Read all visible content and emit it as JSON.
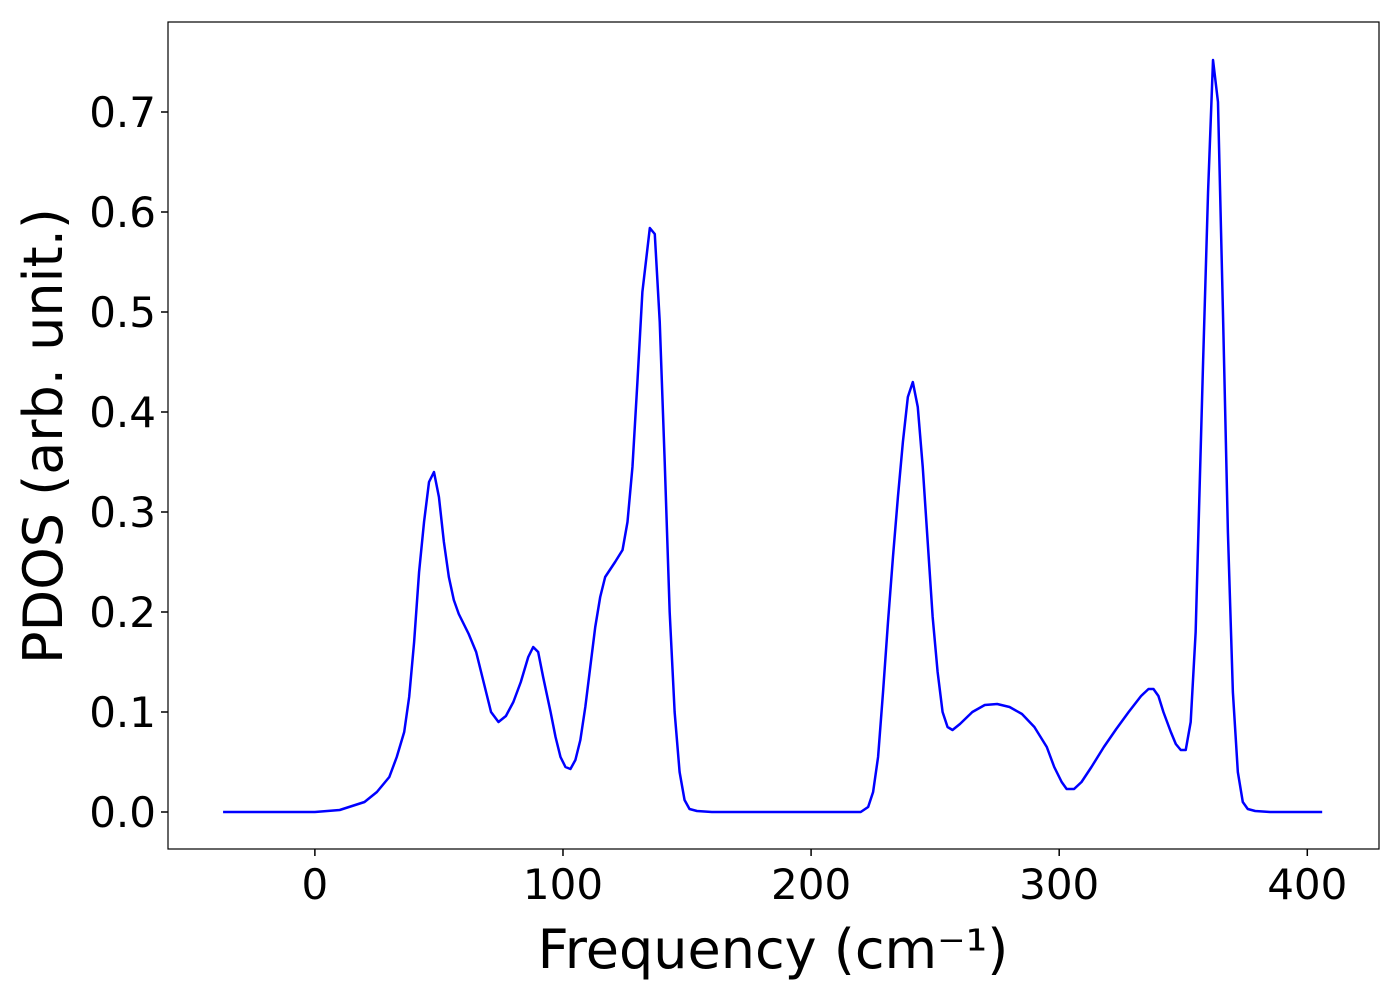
{
  "chart_data": {
    "type": "line",
    "xlabel": "Frequency (cm⁻¹)",
    "ylabel": "PDOS (arb. unit.)",
    "x": [
      -37,
      0,
      10,
      20,
      25,
      30,
      33,
      36,
      38,
      40,
      42,
      44,
      46,
      48,
      50,
      52,
      54,
      56,
      58,
      62,
      65,
      68,
      71,
      74,
      77,
      80,
      83,
      86,
      88,
      90,
      92,
      95,
      97,
      99,
      101,
      103,
      105,
      107,
      109,
      111,
      113,
      115,
      117,
      121,
      124,
      126,
      128,
      130,
      132,
      135,
      137,
      139,
      141,
      143,
      145,
      147,
      149,
      151,
      154,
      160,
      220,
      223,
      225,
      227,
      229,
      231,
      233,
      235,
      237,
      239,
      241,
      243,
      245,
      247,
      249,
      251,
      253,
      255,
      257,
      260,
      265,
      270,
      275,
      280,
      285,
      290,
      295,
      298,
      301,
      303,
      306,
      309,
      313,
      318,
      323,
      328,
      333,
      336,
      338,
      340,
      342,
      345,
      347,
      349,
      351,
      353,
      355,
      358,
      360,
      362,
      364,
      366,
      368,
      370,
      372,
      374,
      376,
      379,
      385,
      406
    ],
    "series": [
      {
        "name": "PDOS",
        "color": "#0000ff",
        "values": [
          0,
          0,
          0.002,
          0.01,
          0.02,
          0.035,
          0.055,
          0.08,
          0.115,
          0.17,
          0.24,
          0.29,
          0.33,
          0.34,
          0.315,
          0.27,
          0.235,
          0.212,
          0.198,
          0.178,
          0.16,
          0.13,
          0.1,
          0.09,
          0.096,
          0.11,
          0.13,
          0.155,
          0.165,
          0.16,
          0.135,
          0.1,
          0.075,
          0.055,
          0.045,
          0.043,
          0.052,
          0.072,
          0.105,
          0.145,
          0.185,
          0.215,
          0.235,
          0.25,
          0.262,
          0.29,
          0.345,
          0.43,
          0.52,
          0.584,
          0.578,
          0.49,
          0.35,
          0.2,
          0.1,
          0.04,
          0.012,
          0.003,
          0.001,
          0,
          0,
          0.005,
          0.02,
          0.055,
          0.12,
          0.19,
          0.255,
          0.315,
          0.37,
          0.415,
          0.43,
          0.405,
          0.345,
          0.27,
          0.195,
          0.14,
          0.1,
          0.085,
          0.082,
          0.088,
          0.1,
          0.107,
          0.108,
          0.105,
          0.098,
          0.085,
          0.065,
          0.045,
          0.03,
          0.023,
          0.023,
          0.03,
          0.045,
          0.065,
          0.083,
          0.1,
          0.116,
          0.123,
          0.123,
          0.116,
          0.1,
          0.08,
          0.068,
          0.062,
          0.062,
          0.09,
          0.18,
          0.45,
          0.62,
          0.752,
          0.71,
          0.5,
          0.28,
          0.12,
          0.04,
          0.01,
          0.003,
          0.001,
          0,
          0
        ]
      }
    ],
    "xlim": [
      -59.2,
      428.9
    ],
    "ylim": [
      -0.037,
      0.79
    ],
    "xticks": [
      0,
      100,
      200,
      300,
      400
    ],
    "yticks": [
      {
        "value": 0,
        "label": "0.0"
      },
      0.1,
      0.2,
      0.3,
      0.4,
      0.5,
      0.6,
      0.7
    ],
    "grid": false
  }
}
